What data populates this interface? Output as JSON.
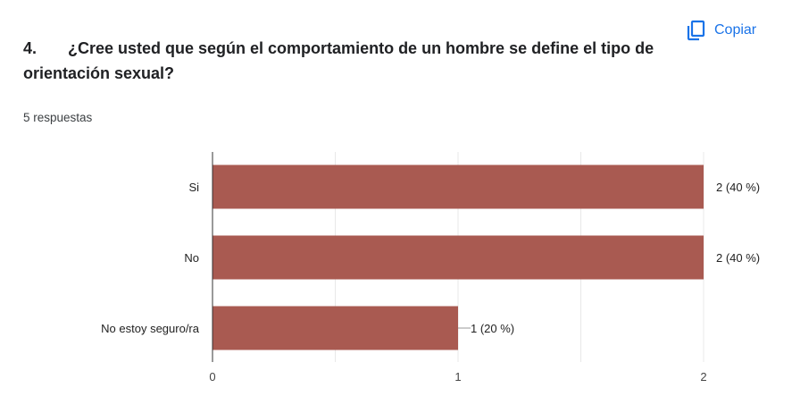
{
  "header": {
    "copy_label": "Copiar",
    "copy_icon": "copy-icon",
    "accent": "#1a73e8"
  },
  "question": {
    "number": "4.",
    "text": "¿Cree usted que según el comportamiento de un hombre se define el tipo de orientación sexual?"
  },
  "responses_text": "5 respuestas",
  "chart_data": {
    "type": "bar",
    "orientation": "horizontal",
    "categories": [
      "Si",
      "No",
      "No estoy seguro/ra"
    ],
    "values": [
      2,
      2,
      1
    ],
    "data_labels": [
      "2 (40 %)",
      "2 (40 %)",
      "1 (20 %)"
    ],
    "xlim": [
      0,
      2
    ],
    "xticks": [
      0,
      1,
      2
    ],
    "bar_color": "#a95a51",
    "grid": true
  }
}
